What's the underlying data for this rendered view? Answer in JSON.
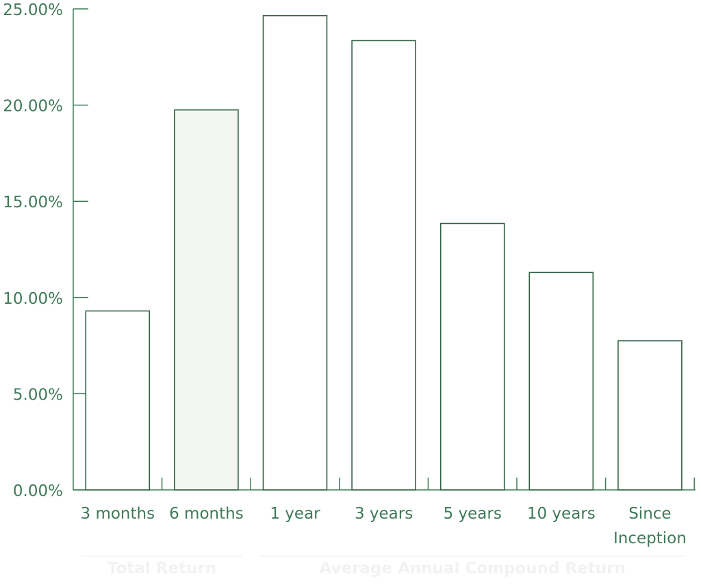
{
  "chart_data": {
    "type": "bar",
    "categories": [
      "3 months",
      "6 months",
      "1 year",
      "3 years",
      "5 years",
      "10 years",
      "Since Inception"
    ],
    "category_label_lines": [
      [
        "3 months"
      ],
      [
        "6 months"
      ],
      [
        "1 year"
      ],
      [
        "3 years"
      ],
      [
        "5 years"
      ],
      [
        "10 years"
      ],
      [
        "Since",
        "Inception"
      ]
    ],
    "values": [
      9.3,
      19.75,
      24.65,
      23.35,
      13.85,
      11.3,
      7.75
    ],
    "highlighted_index": 1,
    "y_ticks": [
      "0.00%",
      "5.00%",
      "10.00%",
      "15.00%",
      "20.00%",
      "25.00%"
    ],
    "y_tick_values": [
      0,
      5,
      10,
      15,
      20,
      25
    ],
    "ylim": [
      0,
      25
    ],
    "grid": false,
    "groups": [
      {
        "label": "Total Return",
        "categories": [
          0,
          1
        ]
      },
      {
        "label": "Average Annual Compound Return",
        "categories": [
          2,
          3,
          4,
          5,
          6
        ]
      }
    ]
  },
  "colors": {
    "axis": "#3f7a58",
    "bar_stroke": "#2f5f43",
    "bar_fill": "#ffffff",
    "highlight_fill": "#f4f6f4",
    "text": "#3f7a58",
    "group_text": "#f2f2f2",
    "group_rule": "#eeeeee"
  }
}
